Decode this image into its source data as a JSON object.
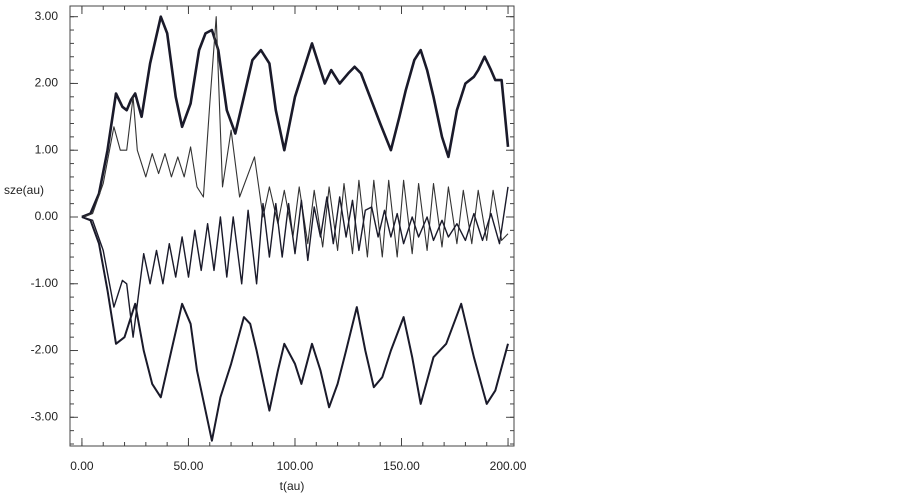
{
  "chart_data": {
    "type": "line",
    "x_label": "t(au)",
    "y_label": "sze(au)",
    "xlim": [
      -5.6,
      202.8
    ],
    "ylim": [
      -3.43,
      3.16
    ],
    "xticks": [
      {
        "value": 0,
        "label": "0.00"
      },
      {
        "value": 50,
        "label": "50.00"
      },
      {
        "value": 100,
        "label": "100.00"
      },
      {
        "value": 150,
        "label": "150.00"
      },
      {
        "value": 200,
        "label": "200.00"
      }
    ],
    "yticks": [
      {
        "value": -3,
        "label": "-3.00"
      },
      {
        "value": -2,
        "label": "-2.00"
      },
      {
        "value": -1,
        "label": "-1.00"
      },
      {
        "value": 0,
        "label": "0.00"
      },
      {
        "value": 1,
        "label": "1.00"
      },
      {
        "value": 2,
        "label": "2.00"
      },
      {
        "value": 3,
        "label": "3.00"
      }
    ],
    "series": [
      {
        "color": "#1a1a2a",
        "x": [
          0,
          4,
          8,
          12,
          16,
          19,
          21,
          23,
          25,
          28,
          32,
          37,
          40,
          44,
          47,
          51,
          55,
          58,
          61,
          64,
          68,
          72,
          76,
          80,
          84,
          88,
          91,
          95,
          100,
          104,
          108,
          111,
          114,
          117,
          121,
          125,
          128,
          131,
          134,
          140,
          145,
          149,
          152,
          156,
          159,
          162,
          165,
          169,
          172,
          176,
          180,
          184,
          186,
          189,
          192,
          194,
          197,
          200
        ],
        "values": [
          0,
          0.05,
          0.35,
          1.0,
          1.85,
          1.65,
          1.6,
          1.75,
          1.85,
          1.5,
          2.3,
          3.0,
          2.75,
          1.8,
          1.35,
          1.7,
          2.5,
          2.75,
          2.8,
          2.5,
          1.6,
          1.25,
          1.8,
          2.35,
          2.5,
          2.3,
          1.6,
          1.0,
          1.8,
          2.2,
          2.6,
          2.3,
          2.0,
          2.2,
          2.0,
          2.15,
          2.25,
          2.15,
          1.9,
          1.4,
          1.0,
          1.5,
          1.9,
          2.35,
          2.5,
          2.2,
          1.8,
          1.2,
          0.9,
          1.6,
          2.0,
          2.1,
          2.2,
          2.4,
          2.2,
          2.05,
          2.05,
          1.05
        ]
      },
      {
        "color": "#333333",
        "x": [
          0,
          5,
          10,
          15,
          18,
          21,
          24,
          26,
          30,
          33,
          36,
          39,
          42,
          45,
          48,
          51,
          54,
          57,
          60,
          63,
          66,
          70,
          74,
          81,
          85,
          88,
          92,
          95,
          99,
          102,
          106,
          109,
          113,
          116,
          120,
          123,
          127,
          130,
          134,
          137,
          141,
          144,
          148,
          151,
          155,
          158,
          162,
          165,
          169,
          172,
          176,
          179,
          183,
          186,
          190,
          193,
          197,
          200
        ],
        "values": [
          0,
          0.05,
          0.5,
          1.35,
          1.0,
          1.0,
          1.8,
          1.0,
          0.6,
          0.95,
          0.65,
          0.95,
          0.6,
          0.9,
          0.6,
          1.05,
          0.45,
          0.3,
          1.7,
          3.0,
          0.45,
          1.3,
          0.3,
          0.9,
          0.0,
          0.45,
          -0.1,
          0.4,
          -0.3,
          0.45,
          -0.4,
          0.4,
          -0.45,
          0.45,
          -0.5,
          0.5,
          -0.55,
          0.55,
          -0.6,
          0.55,
          -0.6,
          0.55,
          -0.6,
          0.55,
          -0.55,
          0.5,
          -0.5,
          0.5,
          -0.45,
          0.45,
          -0.4,
          0.4,
          -0.4,
          0.4,
          -0.35,
          0.4,
          -0.35,
          -0.25
        ]
      },
      {
        "color": "#1a1a2a",
        "x": [
          0,
          5,
          10,
          15,
          19,
          21,
          24,
          29,
          32,
          35,
          38,
          41,
          44,
          47,
          50,
          53,
          56,
          59,
          62,
          65,
          68,
          71,
          75,
          78,
          82,
          85,
          88,
          91,
          94,
          97,
          100,
          103,
          106,
          109,
          112,
          115,
          118,
          121,
          124,
          127,
          130,
          133,
          136,
          139,
          142,
          145,
          148,
          151,
          155,
          158,
          162,
          165,
          169,
          172,
          176,
          180,
          184,
          188,
          192,
          196,
          200
        ],
        "values": [
          0,
          -0.05,
          -0.5,
          -1.35,
          -0.95,
          -1.0,
          -1.8,
          -0.55,
          -1.0,
          -0.5,
          -1.0,
          -0.4,
          -0.9,
          -0.3,
          -0.9,
          -0.2,
          -0.8,
          -0.1,
          -0.8,
          0.0,
          -0.9,
          0.0,
          -1.0,
          0.1,
          -1.0,
          0.2,
          -0.6,
          0.2,
          -0.6,
          0.2,
          -0.55,
          0.25,
          -0.65,
          0.15,
          -0.3,
          0.3,
          -0.4,
          0.3,
          -0.3,
          0.25,
          -0.5,
          0.1,
          0.15,
          -0.3,
          0.1,
          -0.3,
          0.05,
          -0.4,
          0.0,
          -0.3,
          0.0,
          -0.35,
          -0.05,
          -0.3,
          -0.1,
          -0.35,
          0.05,
          -0.35,
          0.05,
          -0.4,
          0.45
        ]
      },
      {
        "color": "#1a1a2a",
        "x": [
          0,
          4,
          8,
          12,
          16,
          20,
          25,
          29,
          33,
          37,
          42,
          47,
          51,
          54,
          58,
          61,
          65,
          70,
          76,
          79,
          82,
          88,
          92,
          95,
          100,
          103,
          108,
          112,
          116,
          120,
          124,
          129,
          133,
          137,
          141,
          145,
          151,
          155,
          159,
          165,
          171,
          178,
          184,
          190,
          194,
          200
        ],
        "values": [
          0,
          -0.05,
          -0.4,
          -1.1,
          -1.9,
          -1.8,
          -1.3,
          -2.0,
          -2.5,
          -2.7,
          -2.0,
          -1.3,
          -1.6,
          -2.3,
          -2.9,
          -3.35,
          -2.7,
          -2.2,
          -1.5,
          -1.6,
          -2.0,
          -2.9,
          -2.3,
          -1.9,
          -2.2,
          -2.5,
          -1.9,
          -2.3,
          -2.85,
          -2.5,
          -2.0,
          -1.35,
          -2.0,
          -2.55,
          -2.4,
          -2.0,
          -1.5,
          -2.1,
          -2.8,
          -2.1,
          -1.9,
          -1.3,
          -2.1,
          -2.8,
          -2.6,
          -1.9
        ]
      }
    ]
  }
}
